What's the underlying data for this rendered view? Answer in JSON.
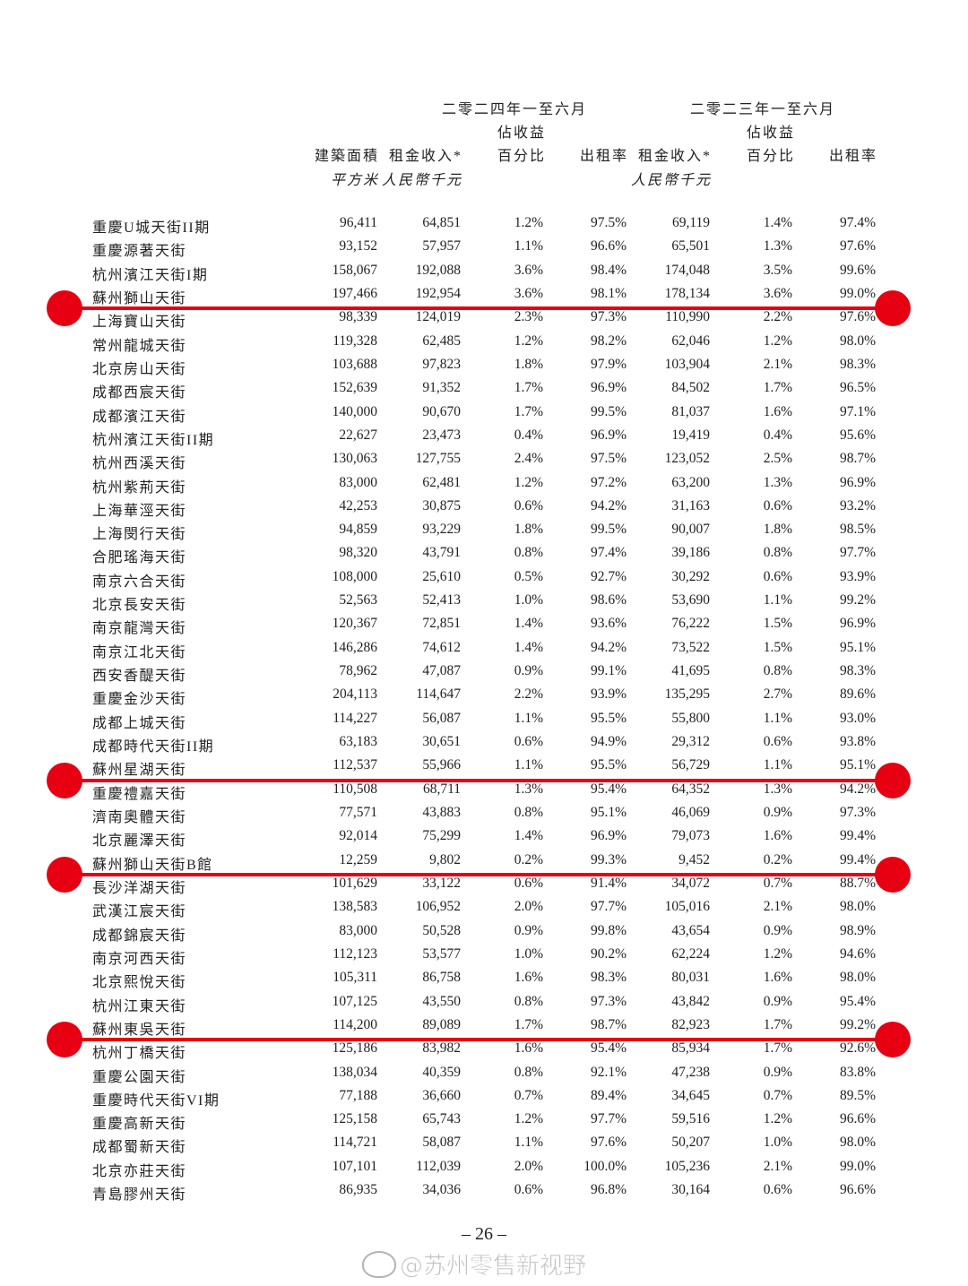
{
  "header": {
    "period_2024": "二零二四年一至六月",
    "period_2023": "二零二三年一至六月",
    "gfa": "建築面積",
    "gfa_unit": "平方米",
    "rent_2024": "租金收入*",
    "rent_unit_2024": "人民幣千元",
    "pct_2024_line1": "佔收益",
    "pct_2024_line2": "百分比",
    "occ_2024": "出租率",
    "rent_2023": "租金收入*",
    "rent_unit_2023": "人民幣千元",
    "pct_2023_line1": "佔收益",
    "pct_2023_line2": "百分比",
    "occ_2023": "出租率"
  },
  "rows": [
    [
      "重慶U城天街II期",
      "96,411",
      "64,851",
      "1.2%",
      "97.5%",
      "69,119",
      "1.4%",
      "97.4%"
    ],
    [
      "重慶源著天街",
      "93,152",
      "57,957",
      "1.1%",
      "96.6%",
      "65,501",
      "1.3%",
      "97.6%"
    ],
    [
      "杭州濱江天街I期",
      "158,067",
      "192,088",
      "3.6%",
      "98.4%",
      "174,048",
      "3.5%",
      "99.6%"
    ],
    [
      "蘇州獅山天街",
      "197,466",
      "192,954",
      "3.6%",
      "98.1%",
      "178,134",
      "3.6%",
      "99.0%"
    ],
    [
      "上海寶山天街",
      "98,339",
      "124,019",
      "2.3%",
      "97.3%",
      "110,990",
      "2.2%",
      "97.6%"
    ],
    [
      "常州龍城天街",
      "119,328",
      "62,485",
      "1.2%",
      "98.2%",
      "62,046",
      "1.2%",
      "98.0%"
    ],
    [
      "北京房山天街",
      "103,688",
      "97,823",
      "1.8%",
      "97.9%",
      "103,904",
      "2.1%",
      "98.3%"
    ],
    [
      "成都西宸天街",
      "152,639",
      "91,352",
      "1.7%",
      "96.9%",
      "84,502",
      "1.7%",
      "96.5%"
    ],
    [
      "成都濱江天街",
      "140,000",
      "90,670",
      "1.7%",
      "99.5%",
      "81,037",
      "1.6%",
      "97.1%"
    ],
    [
      "杭州濱江天街II期",
      "22,627",
      "23,473",
      "0.4%",
      "96.9%",
      "19,419",
      "0.4%",
      "95.6%"
    ],
    [
      "杭州西溪天街",
      "130,063",
      "127,755",
      "2.4%",
      "97.5%",
      "123,052",
      "2.5%",
      "98.7%"
    ],
    [
      "杭州紫荊天街",
      "83,000",
      "62,481",
      "1.2%",
      "97.2%",
      "63,200",
      "1.3%",
      "96.9%"
    ],
    [
      "上海華涇天街",
      "42,253",
      "30,875",
      "0.6%",
      "94.2%",
      "31,163",
      "0.6%",
      "93.2%"
    ],
    [
      "上海閔行天街",
      "94,859",
      "93,229",
      "1.8%",
      "99.5%",
      "90,007",
      "1.8%",
      "98.5%"
    ],
    [
      "合肥瑤海天街",
      "98,320",
      "43,791",
      "0.8%",
      "97.4%",
      "39,186",
      "0.8%",
      "97.7%"
    ],
    [
      "南京六合天街",
      "108,000",
      "25,610",
      "0.5%",
      "92.7%",
      "30,292",
      "0.6%",
      "93.9%"
    ],
    [
      "北京長安天街",
      "52,563",
      "52,413",
      "1.0%",
      "98.6%",
      "53,690",
      "1.1%",
      "99.2%"
    ],
    [
      "南京龍灣天街",
      "120,367",
      "72,851",
      "1.4%",
      "93.6%",
      "76,222",
      "1.5%",
      "96.9%"
    ],
    [
      "南京江北天街",
      "146,286",
      "74,612",
      "1.4%",
      "94.2%",
      "73,522",
      "1.5%",
      "95.1%"
    ],
    [
      "西安香醍天街",
      "78,962",
      "47,087",
      "0.9%",
      "99.1%",
      "41,695",
      "0.8%",
      "98.3%"
    ],
    [
      "重慶金沙天街",
      "204,113",
      "114,647",
      "2.2%",
      "93.9%",
      "135,295",
      "2.7%",
      "89.6%"
    ],
    [
      "成都上城天街",
      "114,227",
      "56,087",
      "1.1%",
      "95.5%",
      "55,800",
      "1.1%",
      "93.0%"
    ],
    [
      "成都時代天街II期",
      "63,183",
      "30,651",
      "0.6%",
      "94.9%",
      "29,312",
      "0.6%",
      "93.8%"
    ],
    [
      "蘇州星湖天街",
      "112,537",
      "55,966",
      "1.1%",
      "95.5%",
      "56,729",
      "1.1%",
      "95.1%"
    ],
    [
      "重慶禮嘉天街",
      "110,508",
      "68,711",
      "1.3%",
      "95.4%",
      "64,352",
      "1.3%",
      "94.2%"
    ],
    [
      "濟南奧體天街",
      "77,571",
      "43,883",
      "0.8%",
      "95.1%",
      "46,069",
      "0.9%",
      "97.3%"
    ],
    [
      "北京麗澤天街",
      "92,014",
      "75,299",
      "1.4%",
      "96.9%",
      "79,073",
      "1.6%",
      "99.4%"
    ],
    [
      "蘇州獅山天街B館",
      "12,259",
      "9,802",
      "0.2%",
      "99.3%",
      "9,452",
      "0.2%",
      "99.4%"
    ],
    [
      "長沙洋湖天街",
      "101,629",
      "33,122",
      "0.6%",
      "91.4%",
      "34,072",
      "0.7%",
      "88.7%"
    ],
    [
      "武漢江宸天街",
      "138,583",
      "106,952",
      "2.0%",
      "97.7%",
      "105,016",
      "2.1%",
      "98.0%"
    ],
    [
      "成都錦宸天街",
      "83,000",
      "50,528",
      "0.9%",
      "99.8%",
      "43,654",
      "0.9%",
      "98.9%"
    ],
    [
      "南京河西天街",
      "112,123",
      "53,577",
      "1.0%",
      "90.2%",
      "62,224",
      "1.2%",
      "94.6%"
    ],
    [
      "北京熙悅天街",
      "105,311",
      "86,758",
      "1.6%",
      "98.3%",
      "80,031",
      "1.6%",
      "98.0%"
    ],
    [
      "杭州江東天街",
      "107,125",
      "43,550",
      "0.8%",
      "97.3%",
      "43,842",
      "0.9%",
      "95.4%"
    ],
    [
      "蘇州東吳天街",
      "114,200",
      "89,089",
      "1.7%",
      "98.7%",
      "82,923",
      "1.7%",
      "99.2%"
    ],
    [
      "杭州丁橋天街",
      "125,186",
      "83,982",
      "1.6%",
      "95.4%",
      "85,934",
      "1.7%",
      "92.6%"
    ],
    [
      "重慶公園天街",
      "138,034",
      "40,359",
      "0.8%",
      "92.1%",
      "47,238",
      "0.9%",
      "83.8%"
    ],
    [
      "重慶時代天街VI期",
      "77,188",
      "36,660",
      "0.7%",
      "89.4%",
      "34,645",
      "0.7%",
      "89.5%"
    ],
    [
      "重慶高新天街",
      "125,158",
      "65,743",
      "1.2%",
      "97.7%",
      "59,516",
      "1.2%",
      "96.6%"
    ],
    [
      "成都蜀新天街",
      "114,721",
      "58,087",
      "1.1%",
      "97.6%",
      "50,207",
      "1.0%",
      "98.0%"
    ],
    [
      "北京亦莊天街",
      "107,101",
      "112,039",
      "2.0%",
      "100.0%",
      "105,236",
      "2.1%",
      "99.0%"
    ],
    [
      "青島膠州天街",
      "86,935",
      "34,036",
      "0.6%",
      "96.8%",
      "30,164",
      "0.6%",
      "96.6%"
    ]
  ],
  "annotation_color": "#e60012",
  "page_number": "– 26 –",
  "watermark": "@苏州零售新视野"
}
